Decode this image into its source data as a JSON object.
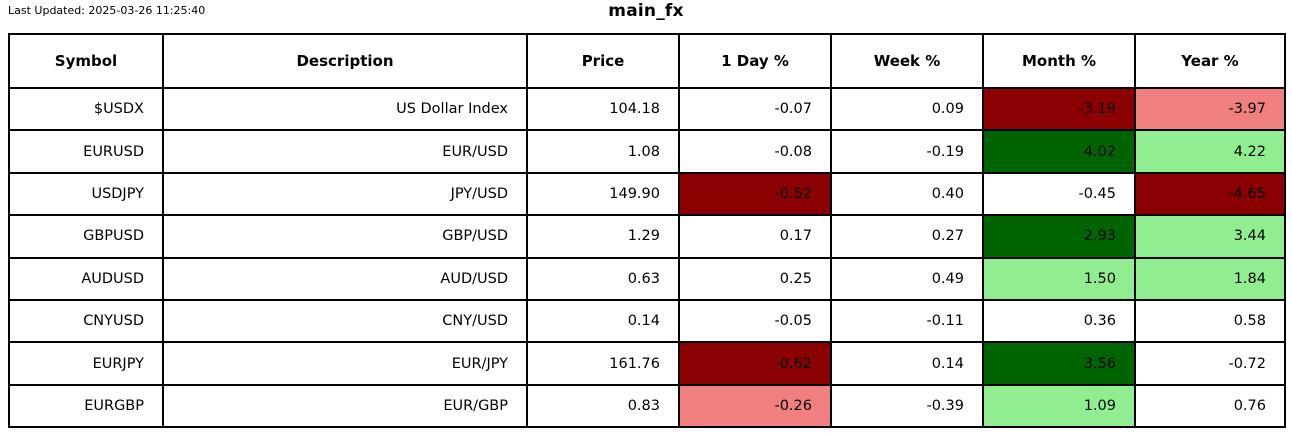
{
  "header": {
    "last_updated": "Last Updated: 2025-03-26 11:25:40",
    "title": "main_fx"
  },
  "colors": {
    "strong_negative": "#8B0000",
    "mild_negative": "#F08080",
    "strong_positive": "#006400",
    "mild_positive": "#90EE90",
    "neutral": "#FFFFFF",
    "border": "#000000",
    "text": "#000000"
  },
  "chart_data": {
    "type": "table",
    "title": "main_fx",
    "last_updated_text": "Last Updated: 2025-03-26 11:25:40",
    "columns": [
      "Symbol",
      "Description",
      "Price",
      "1 Day %",
      "Week %",
      "Month %",
      "Year %"
    ],
    "rows": [
      {
        "symbol": "$USDX",
        "description": "US Dollar Index",
        "price": 104.18,
        "day_pct": -0.07,
        "week_pct": 0.09,
        "month_pct": -3.19,
        "year_pct": -3.97,
        "highlights": {
          "day_pct": null,
          "week_pct": null,
          "month_pct": "strong_negative",
          "year_pct": "mild_negative"
        }
      },
      {
        "symbol": "EURUSD",
        "description": "EUR/USD",
        "price": 1.08,
        "day_pct": -0.08,
        "week_pct": -0.19,
        "month_pct": 4.02,
        "year_pct": 4.22,
        "highlights": {
          "day_pct": null,
          "week_pct": null,
          "month_pct": "strong_positive",
          "year_pct": "mild_positive"
        }
      },
      {
        "symbol": "USDJPY",
        "description": "JPY/USD",
        "price": 149.9,
        "day_pct": -0.52,
        "week_pct": 0.4,
        "month_pct": -0.45,
        "year_pct": -4.65,
        "highlights": {
          "day_pct": "strong_negative",
          "week_pct": null,
          "month_pct": null,
          "year_pct": "strong_negative"
        }
      },
      {
        "symbol": "GBPUSD",
        "description": "GBP/USD",
        "price": 1.29,
        "day_pct": 0.17,
        "week_pct": 0.27,
        "month_pct": 2.93,
        "year_pct": 3.44,
        "highlights": {
          "day_pct": null,
          "week_pct": null,
          "month_pct": "strong_positive",
          "year_pct": "mild_positive"
        }
      },
      {
        "symbol": "AUDUSD",
        "description": "AUD/USD",
        "price": 0.63,
        "day_pct": 0.25,
        "week_pct": 0.49,
        "month_pct": 1.5,
        "year_pct": 1.84,
        "highlights": {
          "day_pct": null,
          "week_pct": null,
          "month_pct": "mild_positive",
          "year_pct": "mild_positive"
        }
      },
      {
        "symbol": "CNYUSD",
        "description": "CNY/USD",
        "price": 0.14,
        "day_pct": -0.05,
        "week_pct": -0.11,
        "month_pct": 0.36,
        "year_pct": 0.58,
        "highlights": {
          "day_pct": null,
          "week_pct": null,
          "month_pct": null,
          "year_pct": null
        }
      },
      {
        "symbol": "EURJPY",
        "description": "EUR/JPY",
        "price": 161.76,
        "day_pct": -0.62,
        "week_pct": 0.14,
        "month_pct": 3.56,
        "year_pct": -0.72,
        "highlights": {
          "day_pct": "strong_negative",
          "week_pct": null,
          "month_pct": "strong_positive",
          "year_pct": null
        }
      },
      {
        "symbol": "EURGBP",
        "description": "EUR/GBP",
        "price": 0.83,
        "day_pct": -0.26,
        "week_pct": -0.39,
        "month_pct": 1.09,
        "year_pct": 0.76,
        "highlights": {
          "day_pct": "mild_negative",
          "week_pct": null,
          "month_pct": "mild_positive",
          "year_pct": null
        }
      }
    ]
  }
}
